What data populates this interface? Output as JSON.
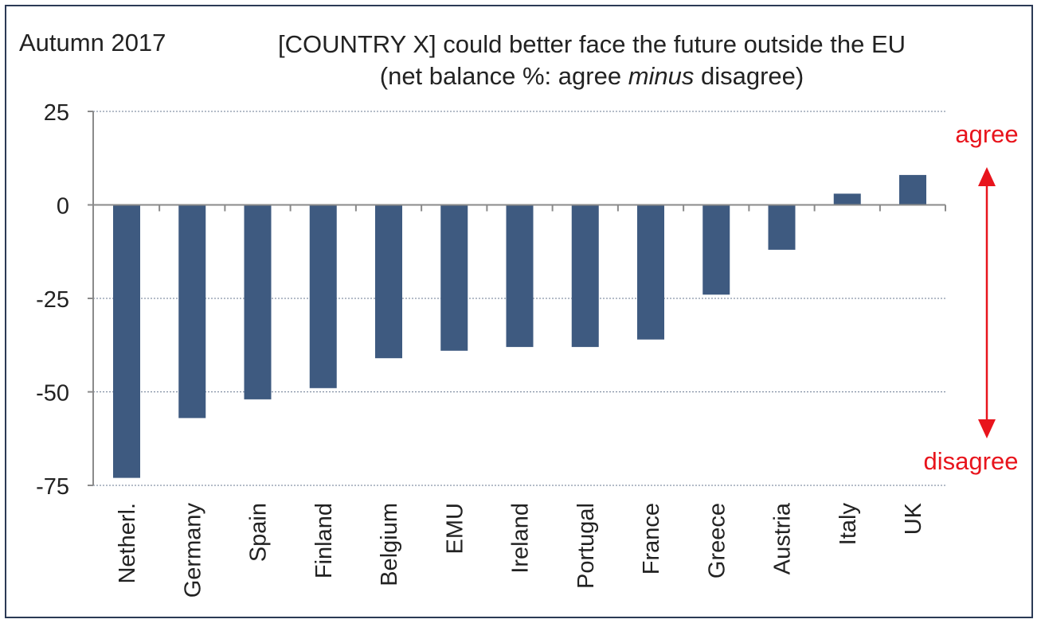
{
  "chart_data": {
    "type": "bar",
    "period_label": "Autumn 2017",
    "title": "[COUNTRY X] could better face the future outside the EU",
    "subtitle": {
      "prefix": "(net balance %: agree ",
      "emphasis": "minus",
      "suffix": " disagree)"
    },
    "categories": [
      "Netherl.",
      "Germany",
      "Spain",
      "Finland",
      "Belgium",
      "EMU",
      "Ireland",
      "Portugal",
      "France",
      "Greece",
      "Austria",
      "Italy",
      "UK"
    ],
    "values": [
      -73,
      -57,
      -52,
      -49,
      -41,
      -39,
      -38,
      -38,
      -36,
      -24,
      -12,
      3,
      8
    ],
    "ylim": [
      -75,
      25
    ],
    "yticks": [
      25,
      0,
      -25,
      -50,
      -75
    ],
    "ytick_labels": [
      "25",
      "0",
      "-25",
      "-50",
      "-75"
    ],
    "grid": true,
    "bar_color": "#3e5a80",
    "annotations": {
      "agree": "agree",
      "disagree": "disagree",
      "color": "#e8141c"
    }
  }
}
